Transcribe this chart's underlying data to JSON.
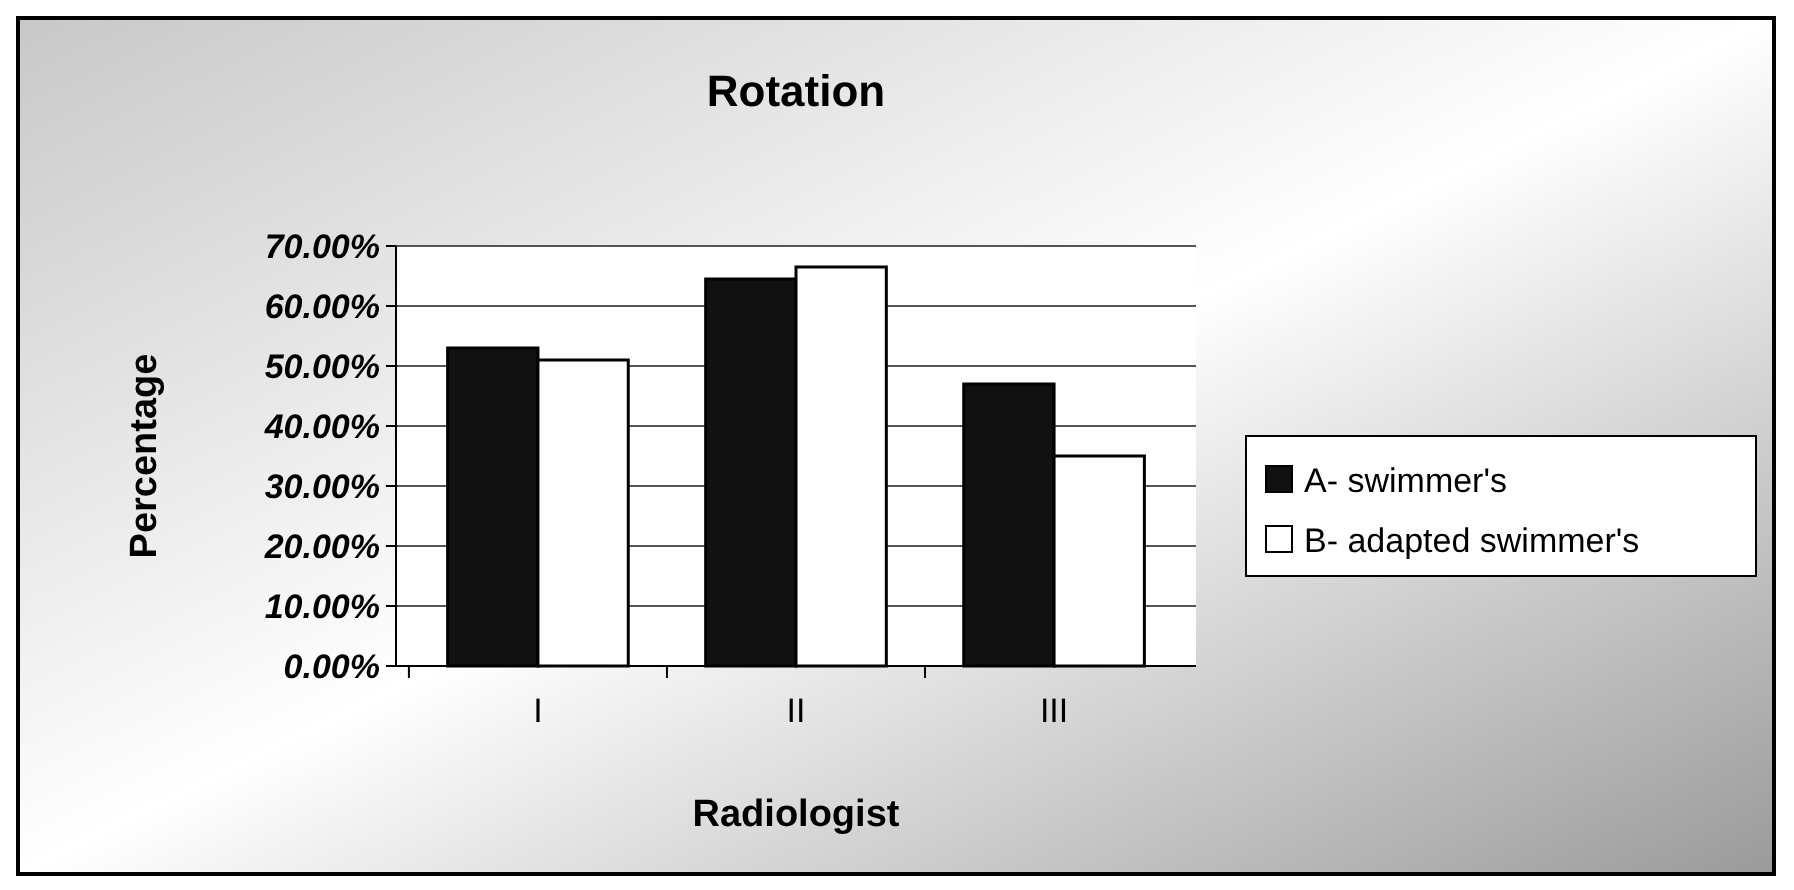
{
  "chart_data": {
    "type": "bar",
    "title": "Rotation",
    "xlabel": "Radiologist",
    "ylabel": "Percentage",
    "categories": [
      "I",
      "II",
      "III"
    ],
    "series": [
      {
        "name": "A- swimmer's",
        "color": "#111111",
        "values": [
          53,
          64.5,
          47
        ]
      },
      {
        "name": "B- adapted swimmer's",
        "color": "#ffffff",
        "values": [
          51,
          66.5,
          35
        ]
      }
    ],
    "ylim": [
      0,
      70
    ],
    "yticks": [
      {
        "value": 0,
        "label": "0.00%"
      },
      {
        "value": 10,
        "label": "10.00%"
      },
      {
        "value": 20,
        "label": "20.00%"
      },
      {
        "value": 30,
        "label": "30.00%"
      },
      {
        "value": 40,
        "label": "40.00%"
      },
      {
        "value": 50,
        "label": "50.00%"
      },
      {
        "value": 60,
        "label": "60.00%"
      },
      {
        "value": 70,
        "label": "70.00%"
      }
    ],
    "grid": "y",
    "legend": "right"
  }
}
